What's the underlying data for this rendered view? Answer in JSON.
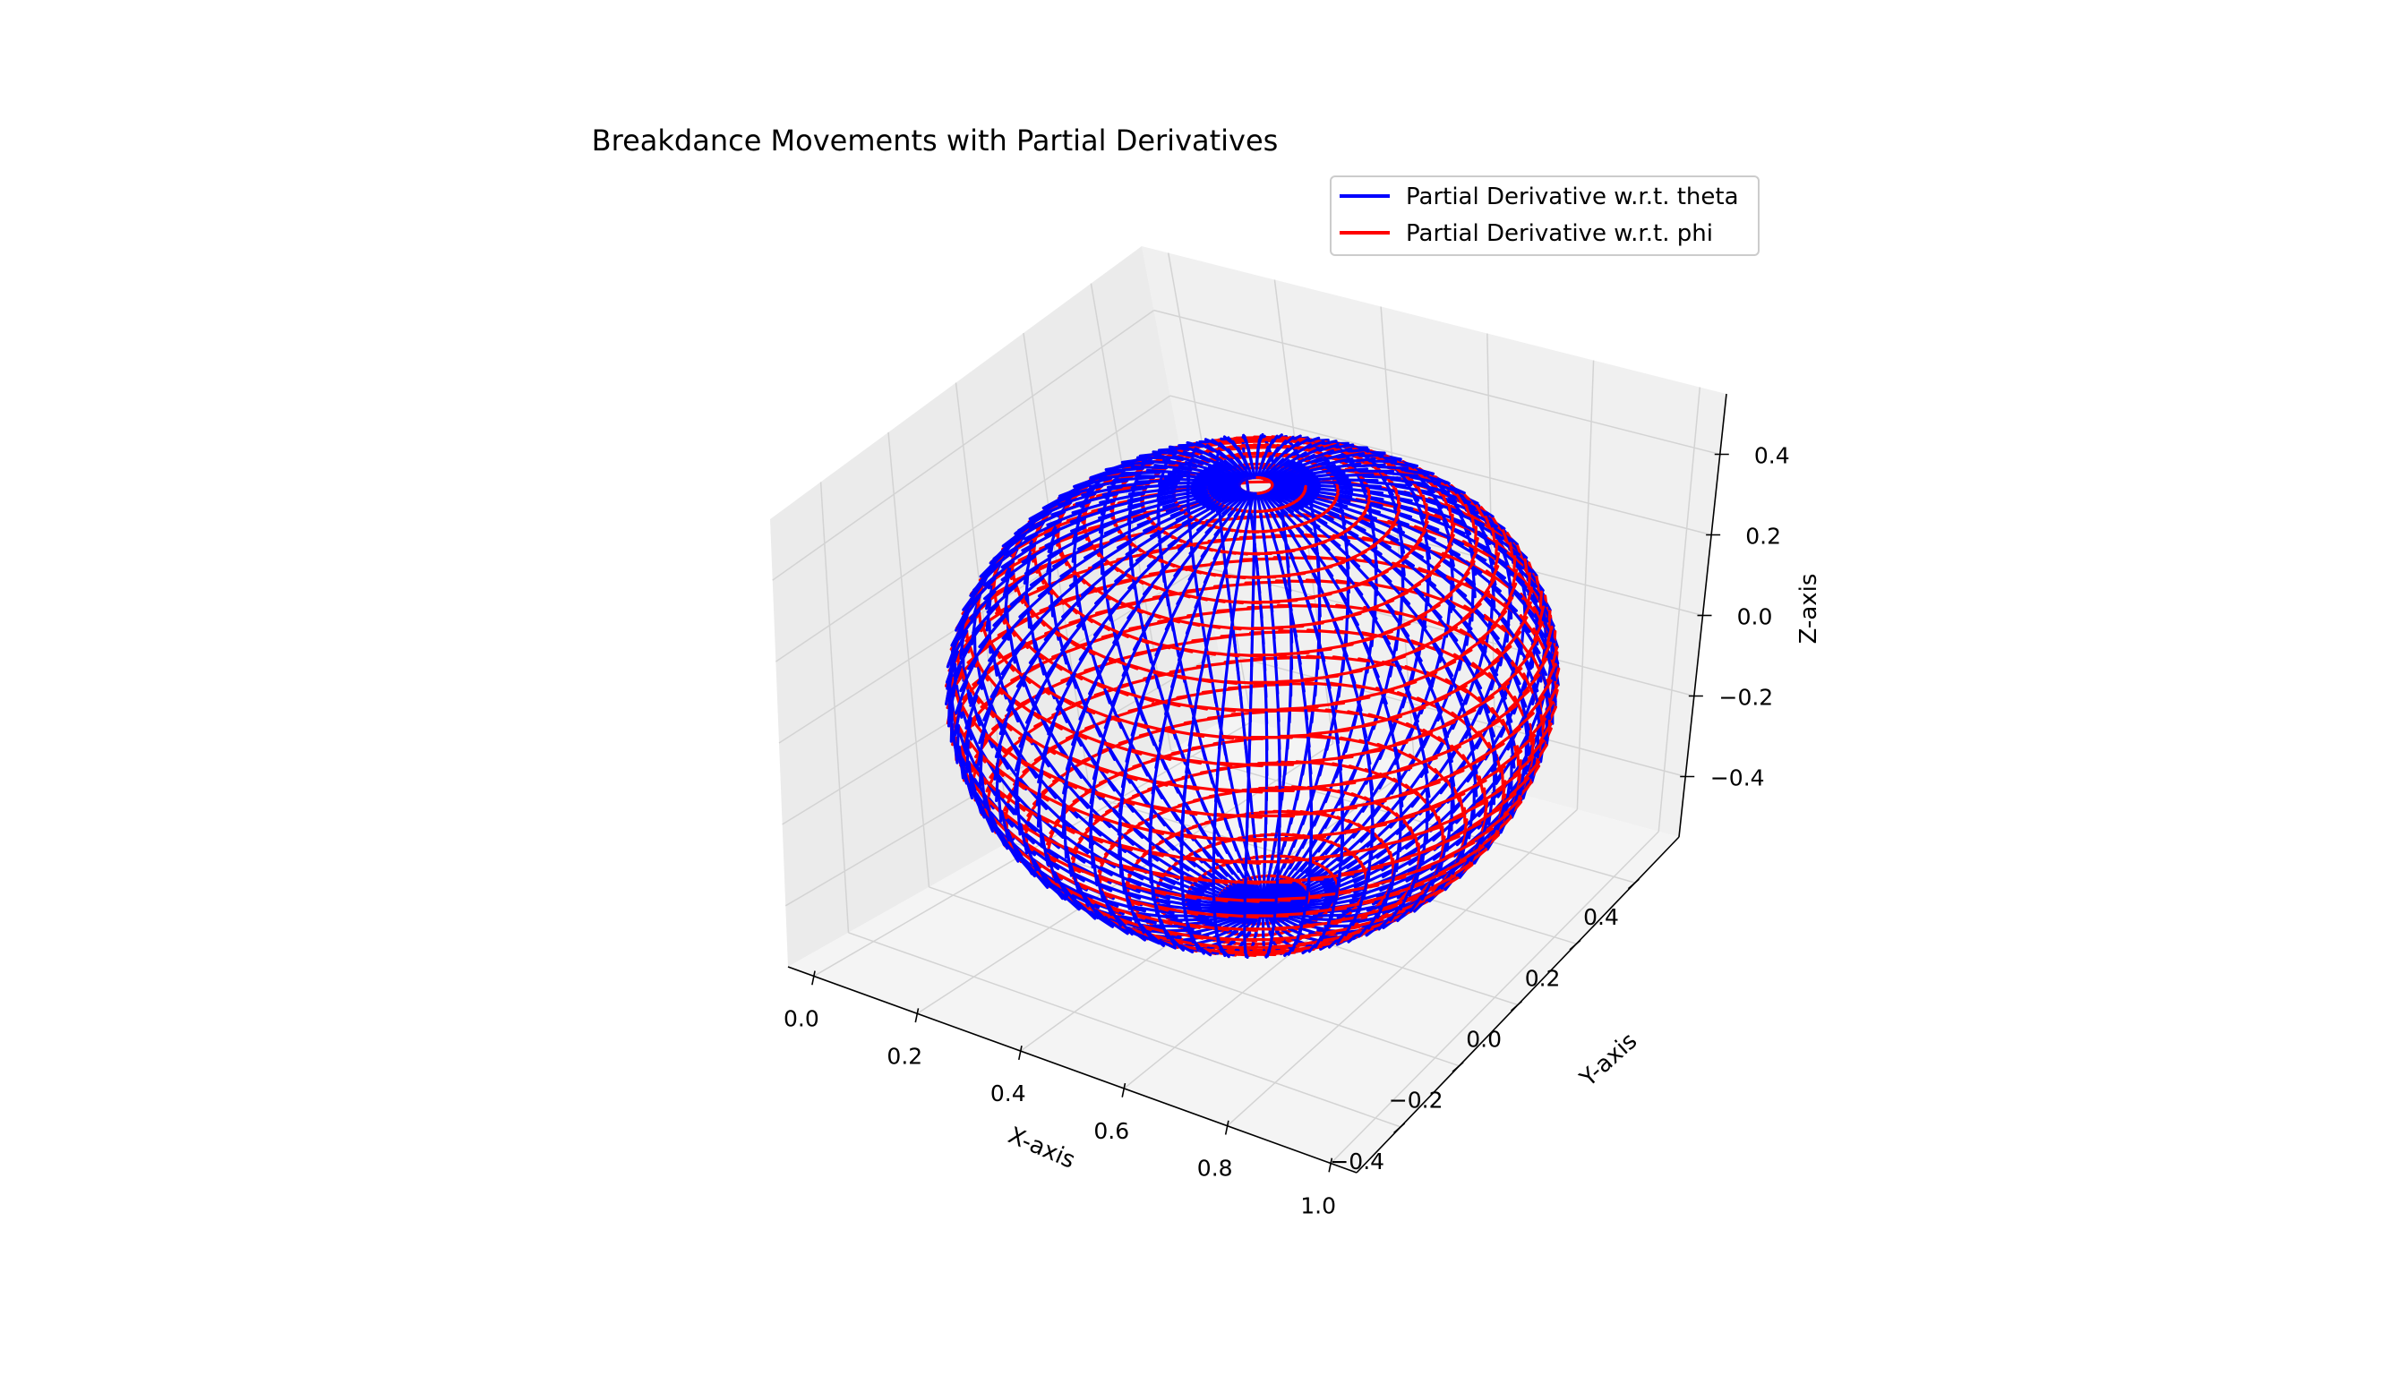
{
  "chart_data": {
    "type": "line",
    "projection": "3d",
    "title": "Breakdance Movements with Partial Derivatives",
    "xlabel": "X-axis",
    "ylabel": "Y-axis",
    "zlabel": "Z-axis",
    "xticks": [
      "0.0",
      "0.2",
      "0.4",
      "0.6",
      "0.8",
      "1.0"
    ],
    "yticks": [
      "−0.4",
      "−0.2",
      "0.0",
      "0.2",
      "0.4"
    ],
    "zticks": [
      "−0.4",
      "−0.2",
      "0.0",
      "0.2",
      "0.4"
    ],
    "xlim": [
      -0.05,
      1.05
    ],
    "ylim": [
      -0.55,
      0.55
    ],
    "zlim": [
      -0.55,
      0.55
    ],
    "grid": true,
    "legend_position": "top-right",
    "surface": {
      "center": [
        0.5,
        0.0,
        0.0
      ],
      "radius": 0.5,
      "theta_range": [
        0,
        3.1416
      ],
      "phi_range": [
        0,
        6.2832
      ]
    },
    "series": [
      {
        "name": "Partial Derivative w.r.t. theta",
        "color": "#0000ff"
      },
      {
        "name": "Partial Derivative w.r.t. phi",
        "color": "#ff0000"
      }
    ]
  }
}
